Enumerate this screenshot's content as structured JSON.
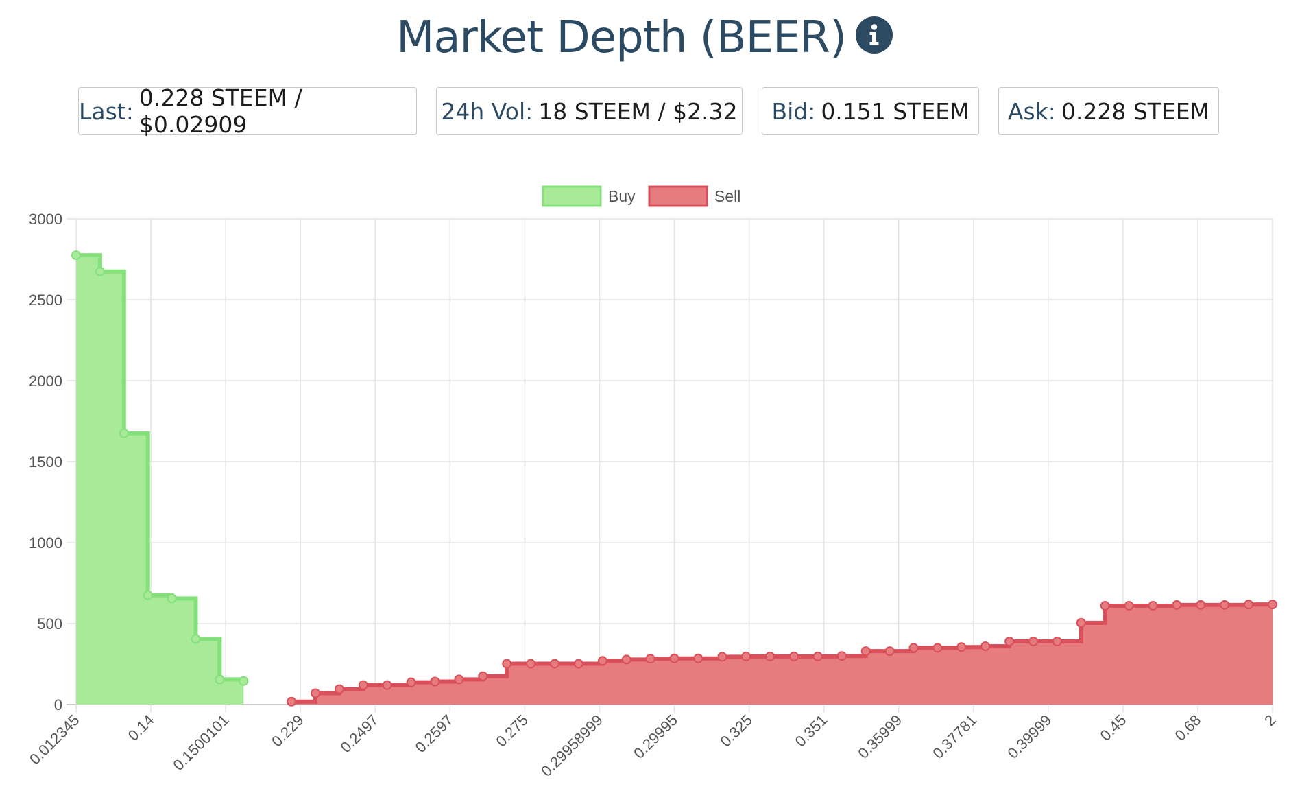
{
  "title": "Market Depth (BEER)",
  "stats": [
    {
      "label": "Last:",
      "value": "0.228 STEEM / $0.02909"
    },
    {
      "label": "24h Vol:",
      "value": "18 STEEM / $2.32"
    },
    {
      "label": "Bid:",
      "value": "0.151 STEEM"
    },
    {
      "label": "Ask:",
      "value": "0.228 STEEM"
    }
  ],
  "chart_data": {
    "type": "area",
    "legend_position": "top",
    "grid": true,
    "ylim": [
      0,
      3000
    ],
    "y_ticks": [
      0,
      500,
      1000,
      1500,
      2000,
      2500,
      3000
    ],
    "x_tick_labels": [
      "0.012345",
      "0.14",
      "0.1500101",
      "0.229",
      "0.2497",
      "0.2597",
      "0.275",
      "0.29958999",
      "0.29995",
      "0.325",
      "0.351",
      "0.35999",
      "0.37781",
      "0.39999",
      "0.45",
      "0.68",
      "2"
    ],
    "series": [
      {
        "name": "Buy",
        "color": "#84e07a",
        "fill": "#a8ea98",
        "values": [
          2775,
          2675,
          1675,
          675,
          655,
          405,
          155,
          145
        ]
      },
      {
        "name": "Sell",
        "color": "#d9505a",
        "fill": "#e67c7f",
        "values": [
          18,
          70,
          95,
          120,
          120,
          137,
          142,
          155,
          175,
          252,
          252,
          252,
          252,
          270,
          278,
          283,
          285,
          285,
          295,
          297,
          297,
          297,
          297,
          300,
          330,
          330,
          350,
          350,
          355,
          360,
          390,
          390,
          390,
          505,
          610,
          610,
          610,
          615,
          615,
          615,
          618,
          618
        ]
      }
    ]
  }
}
